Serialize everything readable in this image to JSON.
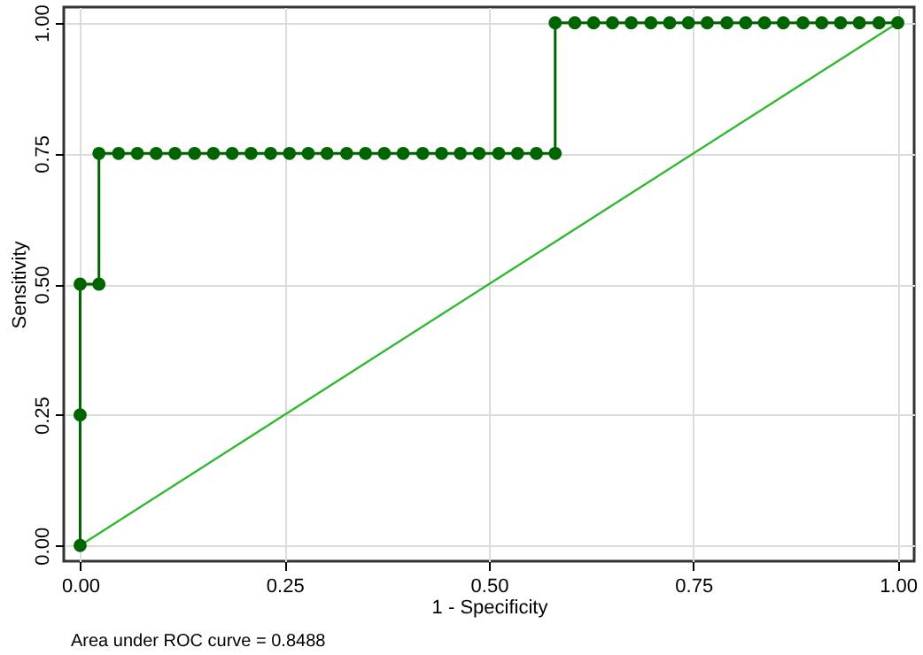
{
  "chart_data": {
    "type": "line",
    "xlabel": "1 - Specificity",
    "ylabel": "Sensitivity",
    "annotations": [
      "Area under ROC curve = 0.8488"
    ],
    "xlim": [
      -0.02,
      1.02
    ],
    "ylim": [
      -0.03,
      1.03
    ],
    "xticks": [
      {
        "value": 0,
        "label": "0.00"
      },
      {
        "value": 0.25,
        "label": "0.25"
      },
      {
        "value": 0.5,
        "label": "0.50"
      },
      {
        "value": 0.75,
        "label": "0.75"
      },
      {
        "value": 1,
        "label": "1.00"
      }
    ],
    "yticks": [
      {
        "value": 0,
        "label": "0.00"
      },
      {
        "value": 0.25,
        "label": "0.25"
      },
      {
        "value": 0.5,
        "label": "0.50"
      },
      {
        "value": 0.75,
        "label": "0.75"
      },
      {
        "value": 1,
        "label": "1.00"
      }
    ],
    "grid": true,
    "series": [
      {
        "marker": "none",
        "color": "#2eb82e",
        "x": [
          0,
          1
        ],
        "values": [
          0,
          1
        ]
      },
      {
        "marker": "circle",
        "color": "#006400",
        "x": [
          0,
          0,
          0,
          0.023,
          0.023,
          0.047,
          0.07,
          0.093,
          0.116,
          0.14,
          0.163,
          0.186,
          0.209,
          0.233,
          0.256,
          0.279,
          0.302,
          0.326,
          0.349,
          0.372,
          0.395,
          0.419,
          0.442,
          0.465,
          0.488,
          0.512,
          0.535,
          0.558,
          0.581,
          0.581,
          0.605,
          0.628,
          0.651,
          0.674,
          0.698,
          0.721,
          0.744,
          0.767,
          0.791,
          0.814,
          0.837,
          0.86,
          0.884,
          0.907,
          0.93,
          0.953,
          0.977,
          1
        ],
        "values": [
          0,
          0.25,
          0.5,
          0.5,
          0.75,
          0.75,
          0.75,
          0.75,
          0.75,
          0.75,
          0.75,
          0.75,
          0.75,
          0.75,
          0.75,
          0.75,
          0.75,
          0.75,
          0.75,
          0.75,
          0.75,
          0.75,
          0.75,
          0.75,
          0.75,
          0.75,
          0.75,
          0.75,
          0.75,
          1,
          1,
          1,
          1,
          1,
          1,
          1,
          1,
          1,
          1,
          1,
          1,
          1,
          1,
          1,
          1,
          1,
          1,
          1
        ]
      }
    ]
  }
}
